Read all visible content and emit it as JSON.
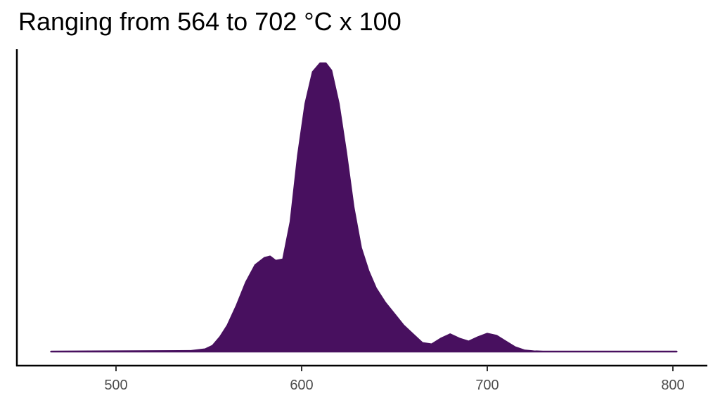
{
  "chart_data": {
    "type": "area",
    "title": "Ranging from 564 to 702 °C x 100",
    "xlabel": "",
    "ylabel": "",
    "xlim": [
      450,
      810
    ],
    "ylim": [
      0,
      1.05
    ],
    "x_ticks": [
      500,
      600,
      700,
      800
    ],
    "x_tick_labels": [
      "500",
      "600",
      "700",
      "800"
    ],
    "grid": false,
    "legend": "none",
    "fill_color": "#48105f",
    "series": [
      {
        "x": [
          465,
          540,
          548,
          552,
          556,
          560,
          565,
          570,
          575,
          580,
          583,
          586,
          590,
          594,
          598,
          602,
          606,
          610,
          613,
          616,
          620,
          624,
          628,
          632,
          636,
          640,
          645,
          650,
          655,
          660,
          665,
          670,
          675,
          680,
          685,
          690,
          695,
          700,
          705,
          710,
          715,
          720,
          725,
          730,
          740,
          802
        ],
        "y": [
          0.0,
          0.002,
          0.008,
          0.02,
          0.05,
          0.09,
          0.16,
          0.24,
          0.3,
          0.325,
          0.33,
          0.315,
          0.32,
          0.45,
          0.68,
          0.86,
          0.97,
          1.0,
          1.0,
          0.975,
          0.86,
          0.69,
          0.5,
          0.36,
          0.28,
          0.22,
          0.17,
          0.13,
          0.09,
          0.06,
          0.03,
          0.025,
          0.045,
          0.06,
          0.045,
          0.035,
          0.05,
          0.062,
          0.055,
          0.035,
          0.015,
          0.004,
          0.001,
          0.0,
          0.0,
          0.0
        ]
      }
    ]
  }
}
